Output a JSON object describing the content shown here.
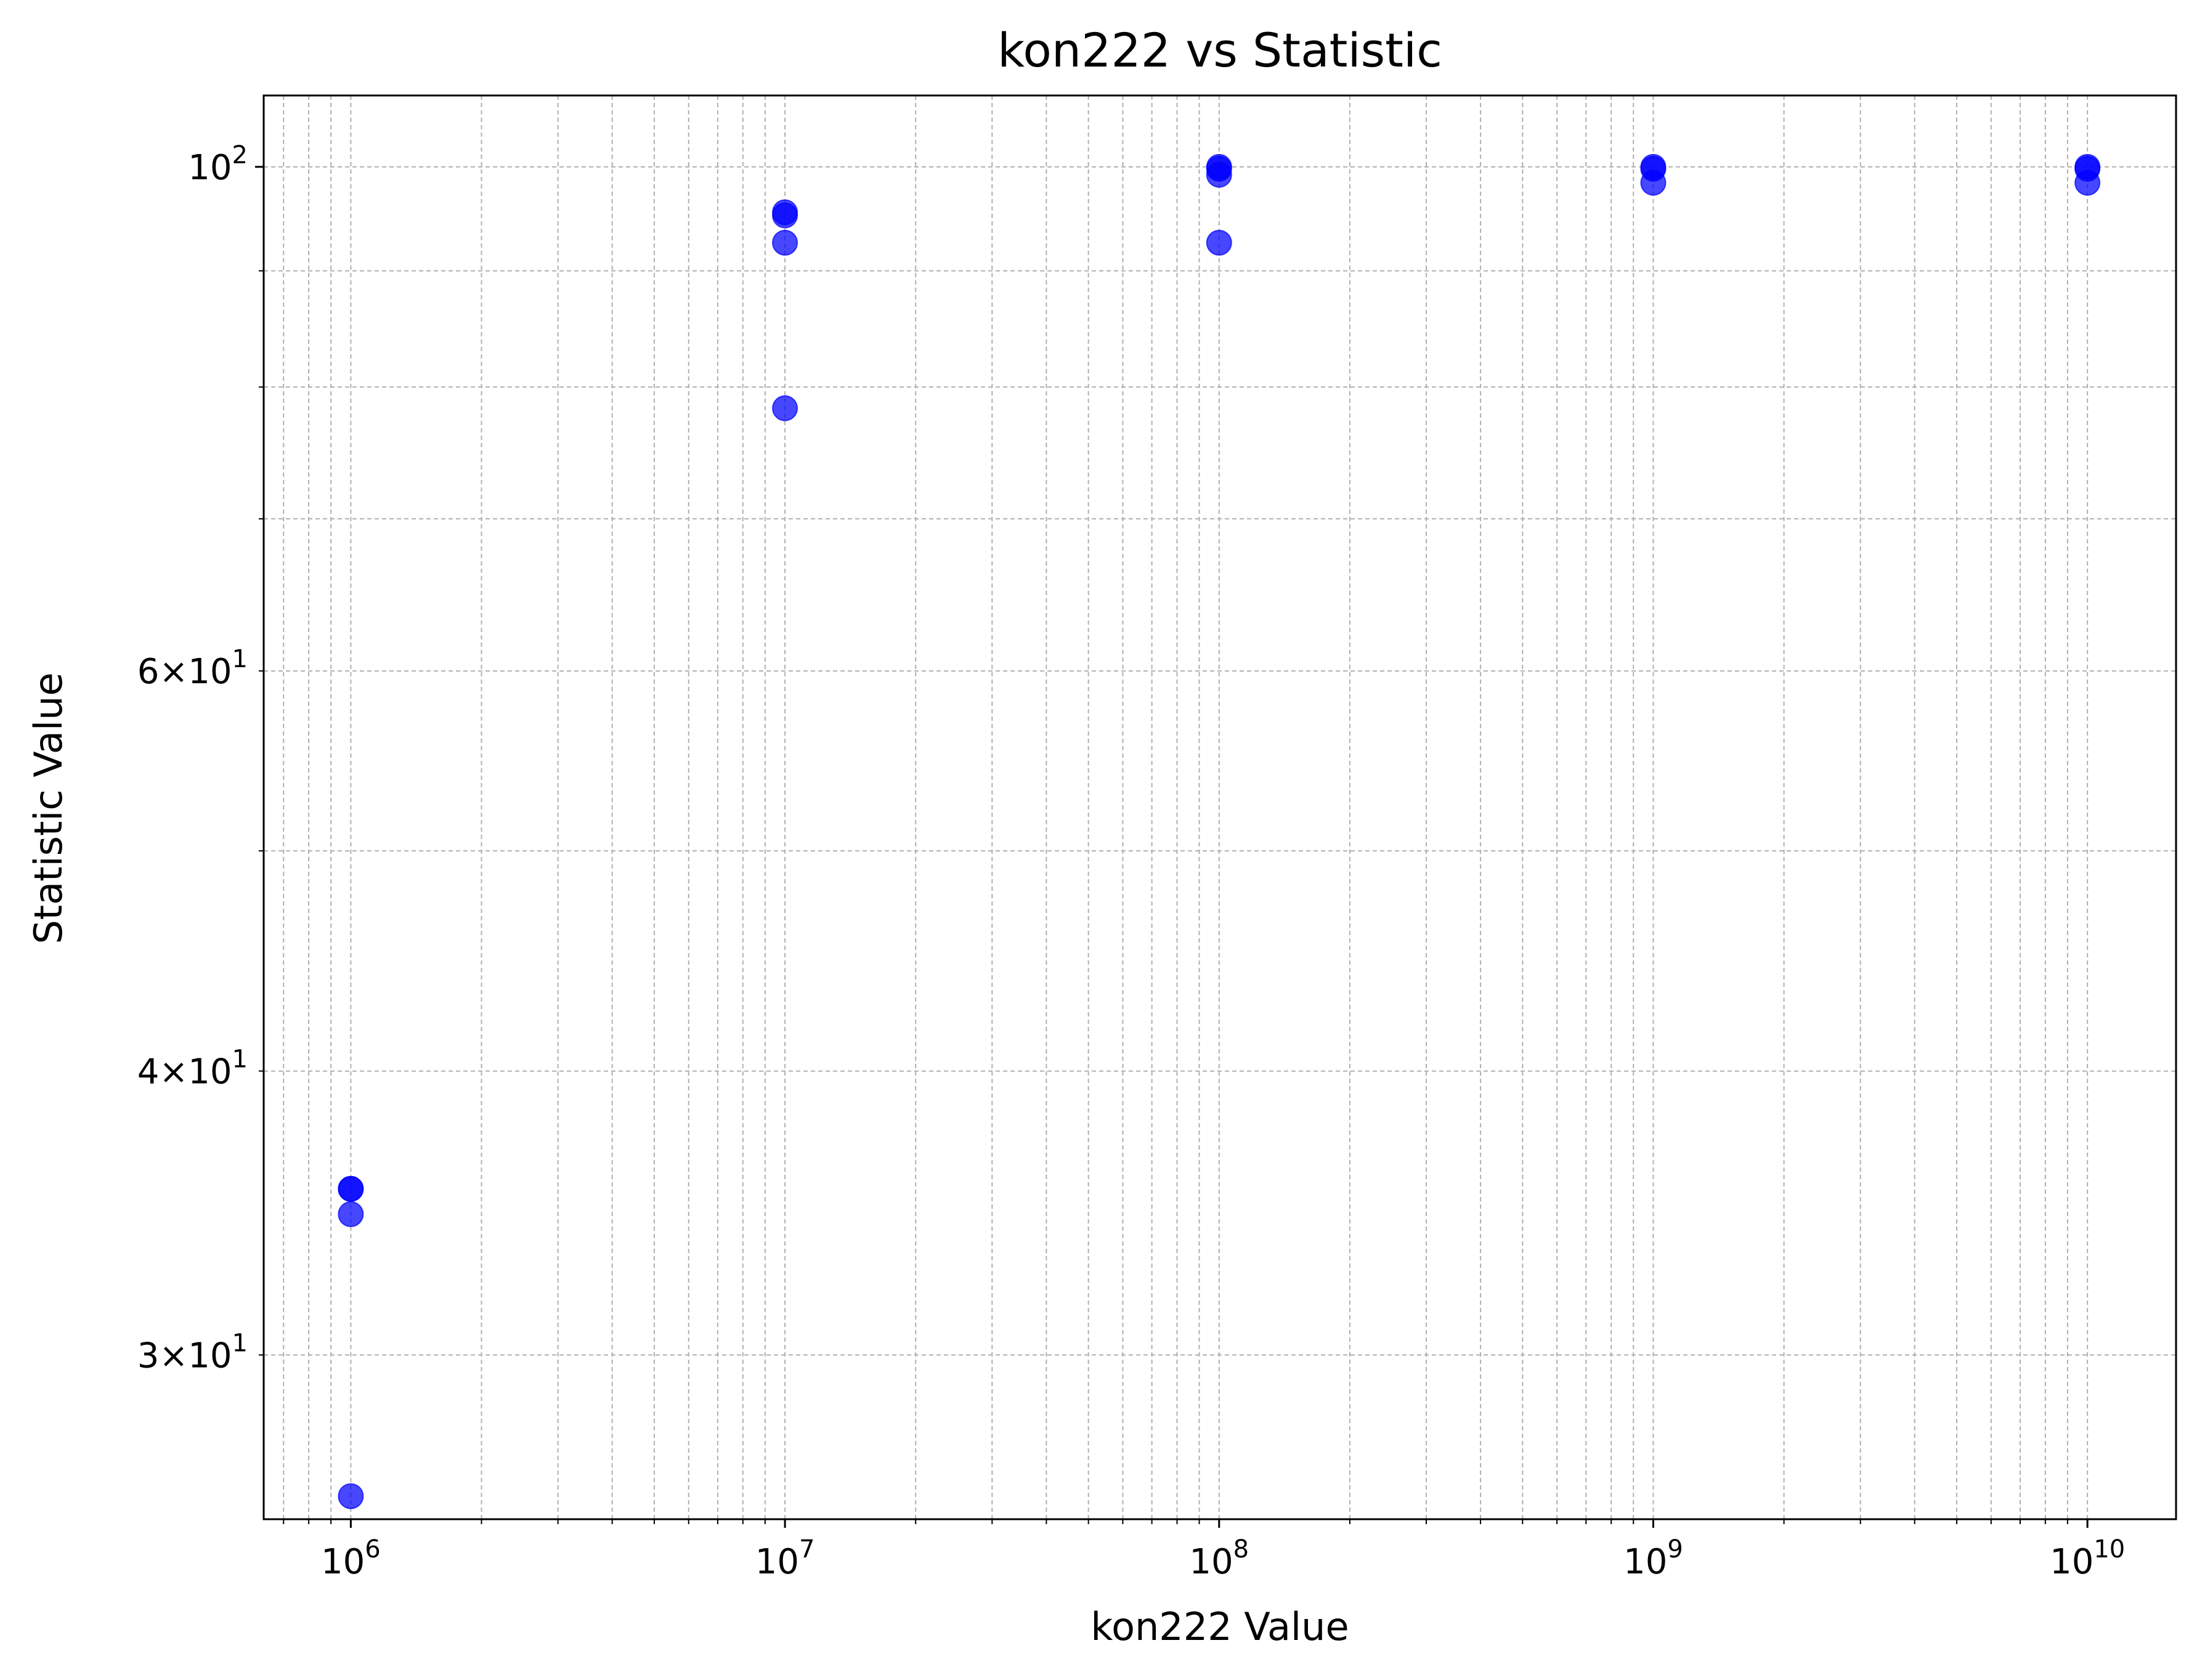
{
  "chart_data": {
    "type": "scatter",
    "title": "kon222 vs Statistic",
    "xlabel": "kon222 Value",
    "ylabel": "Statistic Value",
    "xscale": "log",
    "yscale": "log",
    "xlim": [
      630000,
      16000000000
    ],
    "ylim": [
      25.4,
      107.5
    ],
    "grid": true,
    "grid_style": "dashed",
    "marker_color": "#0000ff",
    "x_tick_labels": [
      {
        "value": 1000000,
        "base": "10",
        "exp": "6"
      },
      {
        "value": 10000000,
        "base": "10",
        "exp": "7"
      },
      {
        "value": 100000000,
        "base": "10",
        "exp": "8"
      },
      {
        "value": 1000000000,
        "base": "10",
        "exp": "9"
      },
      {
        "value": 10000000000,
        "base": "10",
        "exp": "10"
      }
    ],
    "y_tick_labels": [
      {
        "value": 30,
        "prefix": "3×10",
        "exp": "1"
      },
      {
        "value": 40,
        "prefix": "4×10",
        "exp": "1"
      },
      {
        "value": 60,
        "prefix": "6×10",
        "exp": "1"
      },
      {
        "value": 100,
        "prefix": "10",
        "exp": "2"
      }
    ],
    "points": [
      {
        "x": 1000000,
        "y": 35.5
      },
      {
        "x": 1000000,
        "y": 35.5
      },
      {
        "x": 1000000,
        "y": 34.6
      },
      {
        "x": 1000000,
        "y": 26.0
      },
      {
        "x": 10000000,
        "y": 95.5
      },
      {
        "x": 10000000,
        "y": 95.2
      },
      {
        "x": 10000000,
        "y": 92.6
      },
      {
        "x": 10000000,
        "y": 78.3
      },
      {
        "x": 100000000,
        "y": 100.0
      },
      {
        "x": 100000000,
        "y": 99.8
      },
      {
        "x": 100000000,
        "y": 99.2
      },
      {
        "x": 100000000,
        "y": 92.6
      },
      {
        "x": 1000000000,
        "y": 100.0
      },
      {
        "x": 1000000000,
        "y": 99.8
      },
      {
        "x": 1000000000,
        "y": 98.4
      },
      {
        "x": 10000000000,
        "y": 100.0
      },
      {
        "x": 10000000000,
        "y": 99.8
      },
      {
        "x": 10000000000,
        "y": 98.4
      }
    ]
  }
}
